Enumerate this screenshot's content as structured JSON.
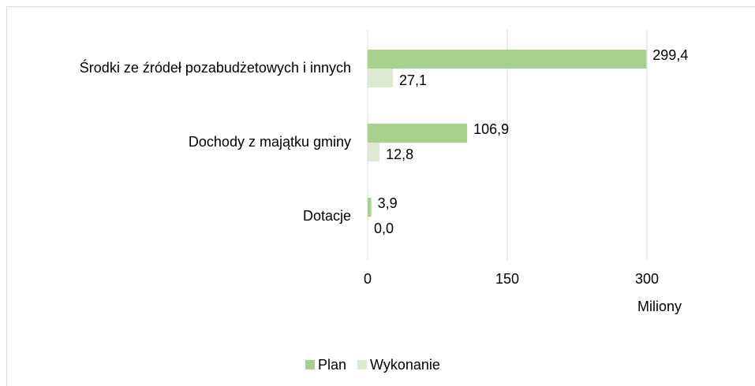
{
  "chart_data": {
    "type": "bar",
    "orientation": "horizontal",
    "categories": [
      "Środki ze źródeł pozabudżetowych i innych",
      "Dochody z majątku gminy",
      "Dotacje"
    ],
    "series": [
      {
        "name": "Plan",
        "color": "#a9d18e",
        "values": [
          299.4,
          106.9,
          3.9
        ],
        "value_labels": [
          "299,4",
          "106,9",
          "3,9"
        ]
      },
      {
        "name": "Wykonanie",
        "color": "#dcebd0",
        "values": [
          27.1,
          12.8,
          0.0
        ],
        "value_labels": [
          "27,1",
          "12,8",
          "0,0"
        ]
      }
    ],
    "x_label": "Miliony",
    "xlim": [
      0,
      300
    ],
    "xticks": [
      0,
      150,
      300
    ],
    "grid": true,
    "legend": "bottom"
  }
}
